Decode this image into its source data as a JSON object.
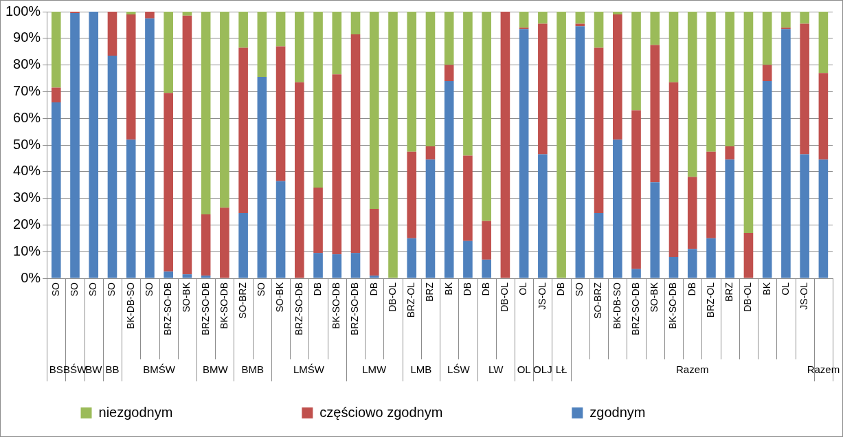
{
  "chart_data": {
    "type": "bar",
    "stacked": true,
    "categories": [
      "SO",
      "SO",
      "SO",
      "SO",
      "BK-DB-SO",
      "SO",
      "BRZ-SO-DB",
      "SO-BK",
      "BRZ-SO-DB",
      "BK-SO-DB",
      "SO-BRZ",
      "SO",
      "SO-BK",
      "BRZ-SO-DB",
      "DB",
      "BK-SO-DB",
      "BRZ-SO-DB",
      "DB",
      "DB-OL",
      "BRZ-OL",
      "BRZ",
      "BK",
      "DB",
      "DB",
      "DB-OL",
      "OL",
      "JS-OL",
      "DB",
      "SO",
      "SO-BRZ",
      "BK-DB-SO",
      "BRZ-SO-DB",
      "SO-BK",
      "BK-SO-DB",
      "DB",
      "BRZ-OL",
      "BRZ",
      "DB-OL",
      "BK",
      "OL",
      "JS-OL",
      null
    ],
    "series": [
      {
        "name": "zgodnym",
        "color": "#4f81bd",
        "values": [
          66,
          99.5,
          100,
          83.5,
          52,
          97.5,
          2.5,
          1.5,
          1,
          0,
          24.5,
          75.5,
          36.5,
          0,
          9.5,
          9,
          9.5,
          1,
          0,
          15,
          44.5,
          74,
          14,
          7,
          0,
          93.5,
          46.5,
          0,
          94.5,
          24.5,
          52,
          3.5,
          36,
          8,
          11,
          15,
          44.5,
          0,
          74,
          93.5,
          46.5,
          44.5
        ]
      },
      {
        "name": "częściowo zgodnym",
        "color": "#c0504d",
        "values": [
          5.5,
          0.5,
          0,
          16.5,
          47,
          2.5,
          67,
          97,
          23,
          26.5,
          62,
          0,
          50.5,
          73.5,
          24.5,
          67.5,
          82,
          25,
          0,
          32.5,
          5,
          6,
          32,
          14.5,
          100,
          0.5,
          49,
          0,
          1,
          62,
          47,
          59.5,
          51.5,
          65.5,
          27,
          32.5,
          5,
          17,
          6,
          0.5,
          49,
          32.5
        ]
      },
      {
        "name": "niezgodnym",
        "color": "#9bbb59",
        "values": [
          28.5,
          0,
          0,
          0,
          1,
          0,
          30.5,
          1.5,
          76,
          73.5,
          13.5,
          24.5,
          13,
          26.5,
          66,
          23.5,
          8.5,
          74,
          100,
          52.5,
          50.5,
          20,
          54,
          78.5,
          0,
          6,
          4.5,
          100,
          4.5,
          13.5,
          1,
          37,
          12.5,
          26.5,
          62,
          52.5,
          50.5,
          83,
          20,
          6,
          4.5,
          23
        ]
      }
    ],
    "ylim": [
      0,
      100
    ],
    "yticks": [
      {
        "value": 0,
        "label": "0%"
      },
      {
        "value": 10,
        "label": "10%"
      },
      {
        "value": 20,
        "label": "20%"
      },
      {
        "value": 30,
        "label": "30%"
      },
      {
        "value": 40,
        "label": "40%"
      },
      {
        "value": 50,
        "label": "50%"
      },
      {
        "value": 60,
        "label": "60%"
      },
      {
        "value": 70,
        "label": "70%"
      },
      {
        "value": 80,
        "label": "80%"
      },
      {
        "value": 90,
        "label": "90%"
      },
      {
        "value": 100,
        "label": "100%"
      }
    ],
    "grid": "y",
    "legend": "bottom",
    "annotations": [
      "BS",
      "BŚW",
      "BW",
      "BB",
      "BMŚW",
      "BMW",
      "BMB",
      "LMŚW",
      "LMW",
      "LMB",
      "LŚW",
      "LW",
      "OL",
      "OLJ",
      "LŁ",
      "Razem",
      "Razem"
    ]
  }
}
